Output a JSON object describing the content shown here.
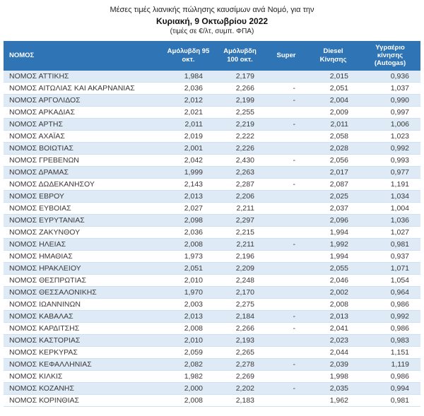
{
  "title": {
    "line1": "Μέσες τιμές λιανικής πώλησης καυσίμων ανά Νομό, για την",
    "line2": "Κυριακή, 9 Οκτωβρίου 2022",
    "line3": "(τιμές σε €/λτ, συμπ. ΦΠΑ)"
  },
  "colors": {
    "header_bg": "#2F74B5",
    "band_bg": "#DEEBF7",
    "header_text": "#FFFFFF",
    "body_text": "#3B3838"
  },
  "table": {
    "columns": [
      "ΝΟΜΟΣ",
      "Αμόλυβδη 95 οκτ.",
      "Αμόλυβδη 100 οκτ.",
      "Super",
      "Diesel Κίνησης",
      "Υγραέριο κίνησης (Autogas)"
    ],
    "rows": [
      [
        "ΝΟΜΟΣ ΑΤΤΙΚΗΣ",
        "1,984",
        "2,179",
        "",
        "2,015",
        "0,936"
      ],
      [
        "ΝΟΜΟΣ ΑΙΤΩΛΙΑΣ ΚΑΙ ΑΚΑΡΝΑΝΙΑΣ",
        "2,036",
        "2,266",
        "-",
        "2,051",
        "1,037"
      ],
      [
        "ΝΟΜΟΣ ΑΡΓΟΛΙΔΟΣ",
        "2,012",
        "2,199",
        "-",
        "2,004",
        "0,990"
      ],
      [
        "ΝΟΜΟΣ ΑΡΚΑΔΙΑΣ",
        "2,021",
        "2,255",
        "",
        "2,009",
        "0,997"
      ],
      [
        "ΝΟΜΟΣ ΑΡΤΗΣ",
        "2,011",
        "2,219",
        "-",
        "2,011",
        "1,006"
      ],
      [
        "ΝΟΜΟΣ ΑΧΑΪΑΣ",
        "2,019",
        "2,222",
        "",
        "2,058",
        "1,023"
      ],
      [
        "ΝΟΜΟΣ ΒΟΙΩΤΙΑΣ",
        "2,001",
        "2,226",
        "",
        "2,028",
        "0,992"
      ],
      [
        "ΝΟΜΟΣ ΓΡΕΒΕΝΩΝ",
        "2,042",
        "2,430",
        "-",
        "2,056",
        "0,993"
      ],
      [
        "ΝΟΜΟΣ ΔΡΑΜΑΣ",
        "1,999",
        "2,263",
        "",
        "2,017",
        "0,977"
      ],
      [
        "ΝΟΜΟΣ ΔΩΔΕΚΑΝΗΣΟΥ",
        "2,143",
        "2,287",
        "-",
        "2,087",
        "1,191"
      ],
      [
        "ΝΟΜΟΣ ΕΒΡΟΥ",
        "2,013",
        "2,206",
        "",
        "2,025",
        "1,034"
      ],
      [
        "ΝΟΜΟΣ ΕΥΒΟΙΑΣ",
        "2,027",
        "2,211",
        "",
        "2,037",
        "1,004"
      ],
      [
        "ΝΟΜΟΣ ΕΥΡΥΤΑΝΙΑΣ",
        "2,098",
        "2,297",
        "",
        "2,096",
        "1,036"
      ],
      [
        "ΝΟΜΟΣ ΖΑΚΥΝΘΟΥ",
        "2,036",
        "2,215",
        "",
        "1,994",
        "1,027"
      ],
      [
        "ΝΟΜΟΣ ΗΛΕΙΑΣ",
        "2,008",
        "2,211",
        "-",
        "1,992",
        "0,981"
      ],
      [
        "ΝΟΜΟΣ ΗΜΑΘΙΑΣ",
        "1,973",
        "2,196",
        "",
        "1,994",
        "0,937"
      ],
      [
        "ΝΟΜΟΣ ΗΡΑΚΛΕΙΟΥ",
        "2,051",
        "2,209",
        "",
        "2,055",
        "1,071"
      ],
      [
        "ΝΟΜΟΣ ΘΕΣΠΡΩΤΙΑΣ",
        "2,010",
        "2,248",
        "",
        "2,046",
        "1,054"
      ],
      [
        "ΝΟΜΟΣ ΘΕΣΣΑΛΟΝΙΚΗΣ",
        "1,970",
        "2,170",
        "",
        "2,002",
        "0,964"
      ],
      [
        "ΝΟΜΟΣ ΙΩΑΝΝΙΝΩΝ",
        "2,003",
        "2,275",
        "",
        "2,008",
        "0,986"
      ],
      [
        "ΝΟΜΟΣ ΚΑΒΑΛΑΣ",
        "2,013",
        "2,184",
        "-",
        "2,013",
        "0,992"
      ],
      [
        "ΝΟΜΟΣ ΚΑΡΔΙΤΣΗΣ",
        "2,008",
        "2,266",
        "-",
        "2,041",
        "0,986"
      ],
      [
        "ΝΟΜΟΣ ΚΑΣΤΟΡΙΑΣ",
        "2,010",
        "2,193",
        "",
        "2,023",
        "0,983"
      ],
      [
        "ΝΟΜΟΣ ΚΕΡΚΥΡΑΣ",
        "2,059",
        "2,265",
        "",
        "2,044",
        "1,151"
      ],
      [
        "ΝΟΜΟΣ ΚΕΦΑΛΛΗΝΙΑΣ",
        "2,082",
        "2,278",
        "-",
        "2,039",
        "1,119"
      ],
      [
        "ΝΟΜΟΣ ΚΙΛΚΙΣ",
        "1,982",
        "2,269",
        "",
        "1,998",
        "0,986"
      ],
      [
        "ΝΟΜΟΣ ΚΟΖΑΝΗΣ",
        "2,000",
        "2,202",
        "-",
        "2,035",
        "0,994"
      ],
      [
        "ΝΟΜΟΣ ΚΟΡΙΝΘΙΑΣ",
        "2,008",
        "2,183",
        "",
        "1,962",
        "0,981"
      ]
    ]
  }
}
